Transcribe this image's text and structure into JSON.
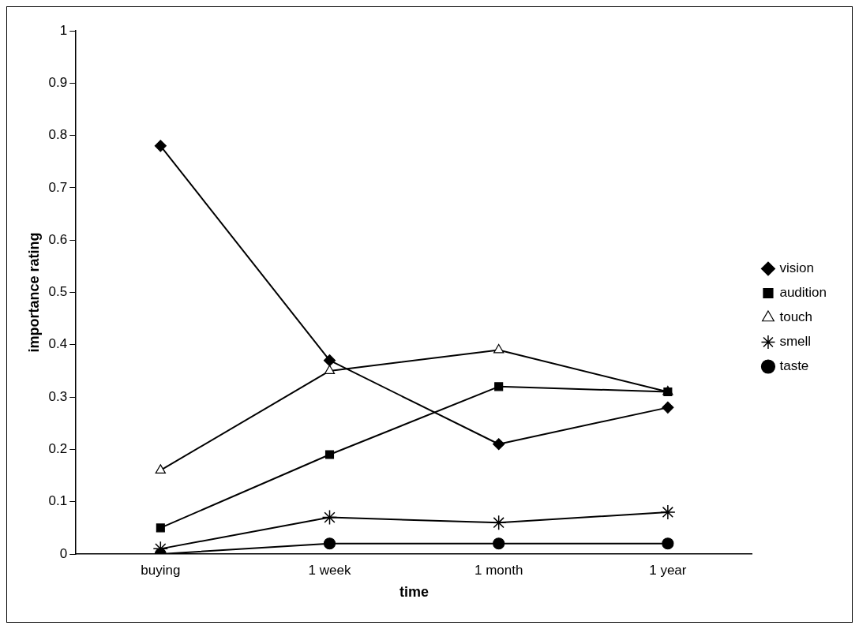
{
  "chart_data": {
    "type": "line",
    "xlabel": "time",
    "ylabel": "importance rating",
    "categories": [
      "buying",
      "1 week",
      "1 month",
      "1 year"
    ],
    "ylim": [
      0,
      1
    ],
    "yticks": [
      0,
      {
        "value": 0.1,
        "label": "0.1"
      },
      {
        "value": 0.2,
        "label": "0.2"
      },
      {
        "value": 0.3,
        "label": "0.3"
      },
      {
        "value": 0.4,
        "label": "0.4"
      },
      {
        "value": 0.5,
        "label": "0.5"
      },
      {
        "value": 0.6,
        "label": "0.6"
      },
      {
        "value": 0.7,
        "label": "0.7"
      },
      {
        "value": 0.8,
        "label": "0.8"
      },
      {
        "value": 0.9,
        "label": "0.9"
      },
      1
    ],
    "grid": false,
    "legend": "right",
    "line_style": "solid",
    "series": [
      {
        "name": "vision",
        "color": "#000000",
        "marker": "diamond",
        "values": [
          0.78,
          0.37,
          0.21,
          0.28
        ]
      },
      {
        "name": "audition",
        "color": "#000000",
        "marker": "square",
        "values": [
          0.05,
          0.19,
          0.32,
          0.31
        ]
      },
      {
        "name": "touch",
        "color": "#000000",
        "marker": "triangle",
        "values": [
          0.16,
          0.35,
          0.39,
          0.31
        ]
      },
      {
        "name": "smell",
        "color": "#000000",
        "marker": "cross",
        "values": [
          0.01,
          0.07,
          0.06,
          0.08
        ]
      },
      {
        "name": "taste",
        "color": "#000000",
        "marker": "circle",
        "values": [
          0,
          0.02,
          0.02,
          0.02
        ]
      }
    ]
  }
}
